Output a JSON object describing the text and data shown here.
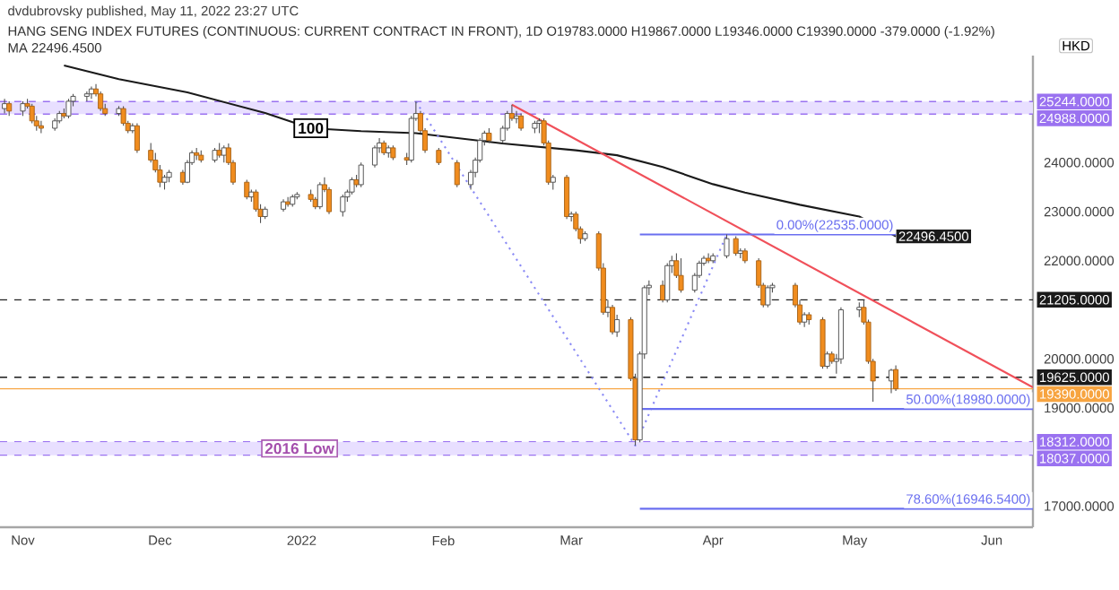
{
  "chart_data": {
    "type": "candlestick",
    "title": "HANG SENG INDEX FUTURES (CONTINUOUS: CURRENT CONTRACT IN FRONT), 1D O19783.0000 H19867.0000 L19346.0000 C19390.0000 -379.0000 (-1.92%)",
    "subtitle": "MA 22496.4500",
    "ylabel": "HKD",
    "annotations": [
      "dvdubrovsky published, May 11, 2022 23:27 UTC",
      {
        "text": "100",
        "x": "2022-01-03",
        "y": 24700
      }
    ],
    "colors": [
      "#ffffff",
      "#f08c1e",
      "#ffffff",
      "#f08c1e",
      "#f08c1e",
      "#f08c1e",
      "#f08c1e",
      "#ffffff",
      "#ffffff",
      "#f08c1e",
      "#ffffff",
      "#ffffff",
      "#ffffff",
      "#ffffff",
      "#f08c1e",
      "#f08c1e",
      "#f08c1e",
      "#ffffff",
      "#f08c1e",
      "#f08c1e",
      "#ffffff",
      "#f08c1e",
      "#f08c1e",
      "#f08c1e",
      "#f08c1e",
      "#ffffff",
      "#ffffff",
      "#f08c1e",
      "#ffffff",
      "#ffffff",
      "#f08c1e",
      "#f08c1e",
      "#ffffff",
      "#f08c1e",
      "#ffffff",
      "#f08c1e",
      "#f08c1e",
      "#f08c1e",
      "#ffffff",
      "#f08c1e",
      "#f08c1e",
      "#ffffff",
      "#ffffff",
      "#f08c1e",
      "#ffffff",
      "#ffffff",
      "#f08c1e",
      "#f08c1e",
      "#ffffff",
      "#f08c1e",
      "#f08c1e",
      "#ffffff",
      "#ffffff",
      "#ffffff",
      "#f08c1e",
      "#ffffff",
      "#ffffff",
      "#ffffff",
      "#f08c1e",
      "#ffffff",
      "#f08c1e",
      "#f08c1e",
      "#ffffff",
      "#ffffff",
      "#f08c1e",
      "#f08c1e",
      "#f08c1e",
      "#f08c1e",
      "#ffffff",
      "#ffffff",
      "#ffffff",
      "#ffffff",
      "#f08c1e",
      "#ffffff",
      "#ffffff",
      "#f08c1e",
      "#ffffff",
      "#f08c1e",
      "#ffffff",
      "#ffffff",
      "#f08c1e",
      "#f08c1e",
      "#ffffff",
      "#f08c1e",
      "#ffffff",
      "#f08c1e",
      "#f08c1e",
      "#ffffff",
      "#f08c1e",
      "#f08c1e",
      "#ffffff",
      "#f08c1e",
      "#ffffff",
      "#f08c1e",
      "#f08c1e",
      "#ffffff",
      "#ffffff",
      "#ffffff",
      "#f08c1e",
      "#ffffff",
      "#ffffff",
      "#f08c1e",
      "#f08c1e",
      "#ffffff",
      "#ffffff",
      "#ffffff",
      "#f08c1e",
      "#ffffff",
      "#ffffff",
      "#f08c1e",
      "#ffffff",
      "#f08c1e",
      "#f08c1e",
      "#f08c1e",
      "#ffffff",
      "#ffffff",
      "#f08c1e",
      "#f08c1e",
      "#ffffff",
      "#f08c1e",
      "#f08c1e",
      "#ffffff",
      "#f08c1e",
      "#ffffff",
      "#ffffff",
      "#ffffff",
      "#f08c1e",
      "#f08c1e",
      "#f08c1e",
      "#ffffff",
      "#f08c1e"
    ],
    "x": [
      "2021-10-28",
      "2021-10-29",
      "2021-11-01",
      "2021-11-02",
      "2021-11-03",
      "2021-11-04",
      "2021-11-05",
      "2021-11-08",
      "2021-11-09",
      "2021-11-10",
      "2021-11-11",
      "2021-11-12",
      "2021-11-15",
      "2021-11-16",
      "2021-11-17",
      "2021-11-18",
      "2021-11-19",
      "2021-11-22",
      "2021-11-23",
      "2021-11-24",
      "2021-11-25",
      "2021-11-26",
      "2021-11-29",
      "2021-11-30",
      "2021-12-01",
      "2021-12-02",
      "2021-12-03",
      "2021-12-06",
      "2021-12-07",
      "2021-12-08",
      "2021-12-09",
      "2021-12-10",
      "2021-12-13",
      "2021-12-14",
      "2021-12-15",
      "2021-12-16",
      "2021-12-17",
      "2021-12-20",
      "2021-12-21",
      "2021-12-22",
      "2021-12-23",
      "2021-12-24",
      "2021-12-28",
      "2021-12-29",
      "2021-12-30",
      "2021-12-31",
      "2022-01-03",
      "2022-01-04",
      "2022-01-05",
      "2022-01-06",
      "2022-01-07",
      "2022-01-10",
      "2022-01-11",
      "2022-01-12",
      "2022-01-13",
      "2022-01-14",
      "2022-01-17",
      "2022-01-18",
      "2022-01-19",
      "2022-01-20",
      "2022-01-21",
      "2022-01-24",
      "2022-01-25",
      "2022-01-26",
      "2022-01-27",
      "2022-01-28",
      "2022-01-31",
      "2022-02-04",
      "2022-02-07",
      "2022-02-08",
      "2022-02-09",
      "2022-02-10",
      "2022-02-11",
      "2022-02-14",
      "2022-02-15",
      "2022-02-16",
      "2022-02-17",
      "2022-02-18",
      "2022-02-21",
      "2022-02-22",
      "2022-02-23",
      "2022-02-24",
      "2022-02-25",
      "2022-02-28",
      "2022-03-01",
      "2022-03-02",
      "2022-03-03",
      "2022-03-04",
      "2022-03-07",
      "2022-03-08",
      "2022-03-09",
      "2022-03-10",
      "2022-03-11",
      "2022-03-14",
      "2022-03-15",
      "2022-03-16",
      "2022-03-17",
      "2022-03-18",
      "2022-03-21",
      "2022-03-22",
      "2022-03-23",
      "2022-03-24",
      "2022-03-25",
      "2022-03-28",
      "2022-03-29",
      "2022-03-30",
      "2022-03-31",
      "2022-04-01",
      "2022-04-04",
      "2022-04-06",
      "2022-04-07",
      "2022-04-08",
      "2022-04-11",
      "2022-04-12",
      "2022-04-13",
      "2022-04-14",
      "2022-04-19",
      "2022-04-20",
      "2022-04-21",
      "2022-04-22",
      "2022-04-25",
      "2022-04-26",
      "2022-04-27",
      "2022-04-28",
      "2022-04-29",
      "2022-05-03",
      "2022-05-04",
      "2022-05-05",
      "2022-05-06",
      "2022-05-10",
      "2022-05-11"
    ],
    "ohlc": [
      [
        25100,
        25300,
        25000,
        25200
      ],
      [
        25200,
        25250,
        24950,
        25050
      ],
      [
        25050,
        25250,
        24950,
        25200
      ],
      [
        25200,
        25300,
        25100,
        25150
      ],
      [
        25150,
        25200,
        24800,
        24850
      ],
      [
        24850,
        24950,
        24650,
        24750
      ],
      [
        24750,
        24850,
        24600,
        24700
      ],
      [
        24700,
        24900,
        24650,
        24850
      ],
      [
        24850,
        25050,
        24800,
        25000
      ],
      [
        25000,
        25100,
        24900,
        24950
      ],
      [
        24950,
        25300,
        24900,
        25250
      ],
      [
        25250,
        25400,
        25150,
        25350
      ],
      [
        25350,
        25450,
        25250,
        25400
      ],
      [
        25400,
        25550,
        25300,
        25500
      ],
      [
        25500,
        25600,
        25350,
        25400
      ],
      [
        25400,
        25450,
        25050,
        25100
      ],
      [
        25100,
        25200,
        24950,
        25000
      ],
      [
        25000,
        25150,
        24950,
        25100
      ],
      [
        25100,
        25150,
        24750,
        24800
      ],
      [
        24800,
        24850,
        24600,
        24650
      ],
      [
        24650,
        24800,
        24600,
        24750
      ],
      [
        24750,
        24800,
        24200,
        24250
      ],
      [
        24250,
        24400,
        24000,
        24050
      ],
      [
        24050,
        24200,
        23800,
        23850
      ],
      [
        23850,
        23950,
        23500,
        23600
      ],
      [
        23600,
        23750,
        23450,
        23700
      ],
      [
        23700,
        23850,
        23600,
        23800
      ],
      [
        23800,
        23850,
        23550,
        23600
      ],
      [
        23600,
        24050,
        23580,
        24000
      ],
      [
        24000,
        24250,
        23950,
        24200
      ],
      [
        24200,
        24300,
        24050,
        24150
      ],
      [
        24150,
        24250,
        24000,
        24050
      ],
      [
        24050,
        24300,
        24000,
        24250
      ],
      [
        24250,
        24400,
        24100,
        24150
      ],
      [
        24150,
        24350,
        24000,
        24300
      ],
      [
        24300,
        24390,
        23950,
        24000
      ],
      [
        24000,
        24050,
        23550,
        23600
      ],
      [
        23600,
        23650,
        23250,
        23300
      ],
      [
        23300,
        23450,
        23200,
        23400
      ],
      [
        23400,
        23450,
        23000,
        23050
      ],
      [
        23050,
        23150,
        22770,
        22900
      ],
      [
        22900,
        23100,
        22850,
        23050
      ],
      [
        23050,
        23250,
        23000,
        23200
      ],
      [
        23200,
        23300,
        23100,
        23150
      ],
      [
        23150,
        23350,
        23100,
        23300
      ],
      [
        23300,
        23400,
        23250,
        23350
      ],
      [
        23350,
        23450,
        23200,
        23250
      ],
      [
        23250,
        23300,
        23050,
        23100
      ],
      [
        23100,
        23600,
        23050,
        23550
      ],
      [
        23550,
        23700,
        23400,
        23450
      ],
      [
        23450,
        23500,
        22950,
        23000
      ],
      [
        23000,
        23350,
        22900,
        23300
      ],
      [
        23300,
        23450,
        23200,
        23400
      ],
      [
        23400,
        23700,
        23350,
        23650
      ],
      [
        23650,
        23750,
        23500,
        23550
      ],
      [
        23550,
        24000,
        23500,
        23950
      ],
      [
        23950,
        24350,
        23900,
        24300
      ],
      [
        24300,
        24500,
        24200,
        24400
      ],
      [
        24400,
        24450,
        24150,
        24200
      ],
      [
        24200,
        24350,
        24100,
        24300
      ],
      [
        24300,
        24350,
        24050,
        24100
      ],
      [
        24100,
        24200,
        23950,
        24050
      ],
      [
        24050,
        24950,
        24000,
        24900
      ],
      [
        24900,
        25244,
        24850,
        25000
      ],
      [
        25000,
        25050,
        24600,
        24650
      ],
      [
        24650,
        24700,
        24200,
        24250
      ],
      [
        24250,
        24300,
        23950,
        24000
      ],
      [
        24000,
        24050,
        23500,
        23550
      ],
      [
        23550,
        23850,
        23450,
        23800
      ],
      [
        23800,
        24100,
        23700,
        24050
      ],
      [
        24050,
        24500,
        24000,
        24450
      ],
      [
        24450,
        24650,
        24350,
        24600
      ],
      [
        24600,
        24700,
        24400,
        24450
      ],
      [
        24450,
        24750,
        24400,
        24700
      ],
      [
        24700,
        25050,
        24650,
        25000
      ],
      [
        25000,
        25180,
        24850,
        24900
      ],
      [
        24900,
        25050,
        24800,
        24950
      ],
      [
        24950,
        25000,
        24650,
        24700
      ],
      [
        24700,
        24850,
        24600,
        24800
      ],
      [
        24800,
        24900,
        24600,
        24850
      ],
      [
        24850,
        24900,
        24350,
        24400
      ],
      [
        24400,
        24450,
        23550,
        23600
      ],
      [
        23600,
        23750,
        23450,
        23700
      ],
      [
        23700,
        23750,
        22850,
        22900
      ],
      [
        22900,
        23000,
        22800,
        22950
      ],
      [
        22950,
        23000,
        22600,
        22650
      ],
      [
        22650,
        22700,
        22350,
        22450
      ],
      [
        22450,
        22600,
        22400,
        22550
      ],
      [
        22550,
        22600,
        21800,
        21850
      ],
      [
        21850,
        21950,
        20900,
        20950
      ],
      [
        20950,
        21200,
        20850,
        21050
      ],
      [
        21050,
        21100,
        20500,
        20550
      ],
      [
        20550,
        20900,
        20450,
        20800
      ],
      [
        20800,
        20850,
        19550,
        19600
      ],
      [
        19600,
        19700,
        18235,
        18350
      ],
      [
        18350,
        20150,
        18300,
        20100
      ],
      [
        20100,
        21500,
        20000,
        21450
      ],
      [
        21450,
        21600,
        21300,
        21500
      ],
      [
        21500,
        21600,
        21150,
        21200
      ],
      [
        21200,
        21950,
        21150,
        21900
      ],
      [
        21900,
        22100,
        21750,
        22000
      ],
      [
        22000,
        22150,
        21650,
        21700
      ],
      [
        21700,
        22050,
        21350,
        21400
      ],
      [
        21400,
        21750,
        21350,
        21700
      ],
      [
        21700,
        22000,
        21650,
        21950
      ],
      [
        21950,
        22100,
        21900,
        22050
      ],
      [
        22050,
        22150,
        21950,
        22000
      ],
      [
        22000,
        22150,
        21950,
        22100
      ],
      [
        22100,
        22535,
        22050,
        22450
      ],
      [
        22450,
        22500,
        22100,
        22150
      ],
      [
        22150,
        22250,
        22050,
        22200
      ],
      [
        22200,
        22250,
        21950,
        22000
      ],
      [
        22000,
        22050,
        21450,
        21500
      ],
      [
        21500,
        21550,
        21050,
        21100
      ],
      [
        21100,
        21500,
        21050,
        21450
      ],
      [
        21450,
        21550,
        21350,
        21500
      ],
      [
        21500,
        21550,
        21050,
        21100
      ],
      [
        21100,
        21200,
        20700,
        20750
      ],
      [
        20750,
        20950,
        20650,
        20900
      ],
      [
        20900,
        20950,
        20700,
        20800
      ],
      [
        20800,
        20850,
        19800,
        19850
      ],
      [
        19850,
        20150,
        19800,
        20100
      ],
      [
        20100,
        20150,
        19900,
        19950
      ],
      [
        19950,
        20100,
        19700,
        20000
      ],
      [
        20000,
        21050,
        19900,
        21000
      ],
      [
        21000,
        21150,
        20850,
        21050
      ],
      [
        21050,
        21205,
        20700,
        20750
      ],
      [
        20750,
        20800,
        19900,
        19950
      ],
      [
        19950,
        20000,
        19130,
        19550
      ],
      [
        19550,
        19800,
        19300,
        19769
      ],
      [
        19783,
        19867,
        19346,
        19390
      ]
    ],
    "series": [
      {
        "type": "line",
        "color": "#1a1a1a",
        "x": [
          "2021-11-10",
          "2021-11-22",
          "2021-12-07",
          "2021-12-24",
          "2022-01-03",
          "2022-01-14",
          "2022-01-26",
          "2022-02-14",
          "2022-03-02",
          "2022-03-11",
          "2022-03-21",
          "2022-04-01",
          "2022-04-08",
          "2022-04-20",
          "2022-05-03",
          "2022-05-11"
        ],
        "values": [
          25980,
          25700,
          25430,
          25010,
          24700,
          24640,
          24600,
          24390,
          24250,
          24150,
          23910,
          23560,
          23390,
          23140,
          22900,
          22496.45
        ],
        "value_labels": [
          null,
          null,
          null,
          null,
          null,
          null,
          null,
          null,
          null,
          null,
          null,
          null,
          null,
          null,
          null,
          "22496.4500"
        ]
      },
      {
        "type": "line",
        "color": "#f0505a",
        "x": [
          "2022-02-16",
          "2022-06-10"
        ],
        "values": [
          25180,
          19420
        ]
      },
      {
        "type": "line",
        "color": "#8a8af5",
        "line_style": "dotted",
        "x": [
          "2022-01-26",
          "2022-03-15",
          "2022-04-04"
        ],
        "values": [
          25244,
          18235,
          22535
        ]
      },
      {
        "type": "line",
        "color": "#6a6ff0",
        "name": "0.00%(22535.0000)",
        "x": [
          "2022-03-16",
          "2022-05-11"
        ],
        "values": [
          22535,
          22535
        ]
      },
      {
        "type": "line",
        "color": "#6a6ff0",
        "name": "50.00%(18980.0000)",
        "x": [
          "2022-03-16",
          "2022-06-10"
        ],
        "values": [
          18980,
          18980
        ]
      },
      {
        "type": "line",
        "color": "#6a6ff0",
        "name": "78.60%(16946.5400)",
        "x": [
          "2022-03-16",
          "2022-06-10"
        ],
        "values": [
          16946.54,
          16946.54
        ]
      }
    ],
    "bands": [
      {
        "axis": "y",
        "from": 24988,
        "to": 25244,
        "color": "#e8dfff"
      },
      {
        "axis": "y",
        "from": 18037,
        "to": 18312,
        "color": "#e8dfff",
        "label": "2016 Low"
      }
    ],
    "ref_lines": [
      {
        "axis": "y",
        "value": 25244,
        "label": "25244.0000",
        "color": "#9a72f0",
        "line_style": "dashed"
      },
      {
        "axis": "y",
        "value": 24988,
        "label": "24988.0000",
        "color": "#9a72f0",
        "line_style": "dashed"
      },
      {
        "axis": "y",
        "value": 21205,
        "label": "21205.0000",
        "color": "#1a1a1a",
        "line_style": "dashed"
      },
      {
        "axis": "y",
        "value": 19625,
        "label": "19625.0000",
        "color": "#1a1a1a",
        "line_style": "dashed"
      },
      {
        "axis": "y",
        "value": 19390,
        "label": "19390.0000",
        "color": "#f7a440",
        "line_style": "solid"
      },
      {
        "axis": "y",
        "value": 18312,
        "label": "18312.0000",
        "color": "#9a72f0",
        "line_style": "dashed"
      },
      {
        "axis": "y",
        "value": 18037,
        "label": "18037.0000",
        "color": "#9a72f0",
        "line_style": "dashed"
      }
    ],
    "xlim": [
      "2021-10-27",
      "2022-06-10"
    ],
    "xticks": [
      {
        "value": "2021-11-01",
        "label": "Nov"
      },
      {
        "value": "2021-12-01",
        "label": "Dec"
      },
      {
        "value": "2022-01-01",
        "label": "2022"
      },
      {
        "value": "2022-02-01",
        "label": "Feb"
      },
      {
        "value": "2022-03-01",
        "label": "Mar"
      },
      {
        "value": "2022-04-01",
        "label": "Apr"
      },
      {
        "value": "2022-05-02",
        "label": "May"
      },
      {
        "value": "2022-06-01",
        "label": "Jun"
      }
    ],
    "ylim": [
      16570,
      26180
    ],
    "yticks": [
      {
        "value": 17000,
        "label": "17000.0000"
      },
      {
        "value": 19000,
        "label": "19000.0000"
      },
      {
        "value": 20000,
        "label": "20000.0000"
      },
      {
        "value": 22000,
        "label": "22000.0000"
      },
      {
        "value": 23000,
        "label": "23000.0000"
      },
      {
        "value": 24000,
        "label": "24000.0000"
      }
    ]
  }
}
